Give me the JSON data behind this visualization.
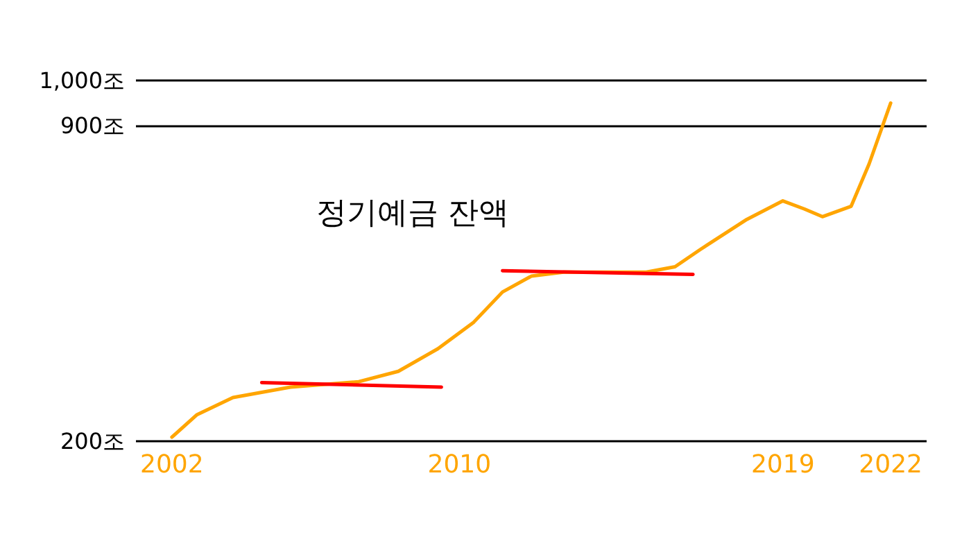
{
  "chart_data": {
    "type": "line",
    "title": "정기예금 잔액",
    "xlim": [
      2001,
      2023
    ],
    "xticks": [
      2002,
      2010,
      2019,
      2022
    ],
    "ylim": [
      200,
      1000
    ],
    "yticks": [
      {
        "value": 200,
        "label": "200조"
      },
      {
        "value": 900,
        "label": "900조"
      },
      {
        "value": 1000,
        "label": "1,000조"
      }
    ],
    "grid": "y",
    "marker": "none",
    "line_style": "solid",
    "series": [
      {
        "color": "#ffa500",
        "x": [
          2002,
          2002.7,
          2003.7,
          2005.3,
          2007.2,
          2008.3,
          2009.4,
          2010.4,
          2011.2,
          2012,
          2012.9,
          2015.2,
          2016,
          2016.7,
          2018,
          2019,
          2019.6,
          2020.1,
          2020.9,
          2021.4,
          2022
        ],
        "values": [
          209,
          259,
          297,
          320,
          332,
          355,
          405,
          464,
          531,
          566,
          575,
          575,
          587,
          625,
          692,
          733,
          715,
          698,
          721,
          815,
          950
        ]
      },
      {
        "color": "#ff0000",
        "x": [
          2004.5,
          2009.5
        ],
        "values": [
          330,
          320
        ]
      },
      {
        "color": "#ff0000",
        "x": [
          2011.2,
          2016.5
        ],
        "values": [
          578,
          570
        ]
      }
    ]
  }
}
